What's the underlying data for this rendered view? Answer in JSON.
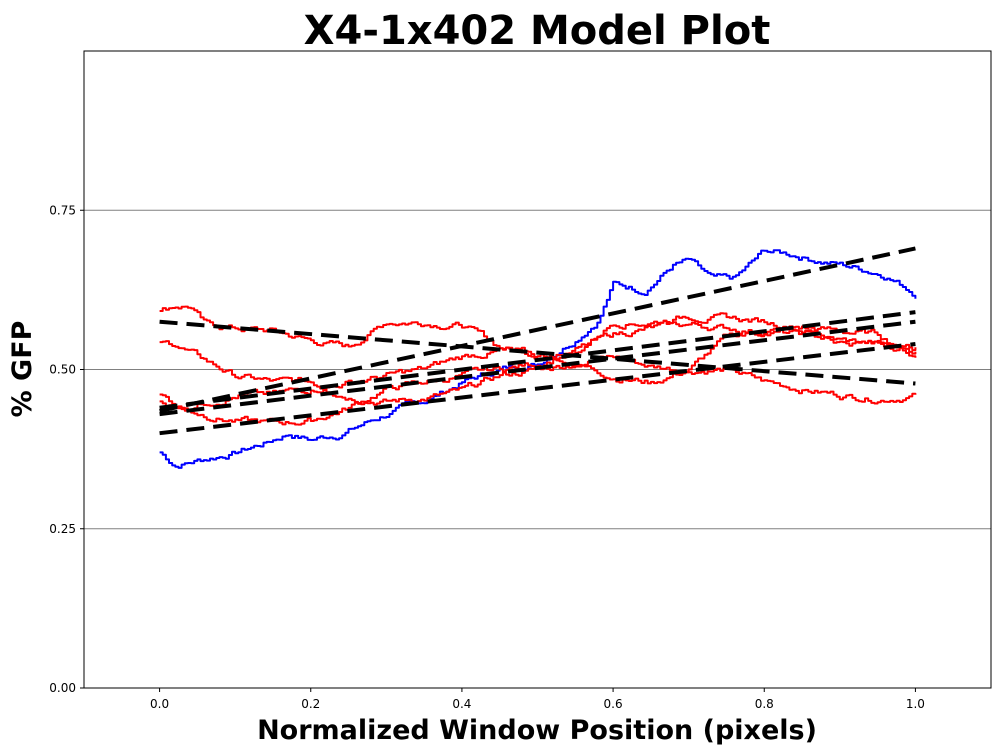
{
  "chart_data": {
    "type": "line",
    "title": "X4-1x402 Model Plot",
    "xlabel": "Normalized Window Position (pixels)",
    "ylabel": "% GFP",
    "xlim": [
      -0.1,
      1.1
    ],
    "ylim": [
      0,
      1.0
    ],
    "xticks": [
      "0.0",
      "0.2",
      "0.4",
      "0.6",
      "0.8",
      "1.0"
    ],
    "yticks": [
      "0.00",
      "0.25",
      "0.50",
      "0.75"
    ],
    "grid": "horizontal",
    "legend": "none",
    "colors": {
      "blue": "#0000ff",
      "red": "#ff0000",
      "fit": "#000000",
      "grid": "#808080"
    },
    "series": [
      {
        "color": "#0000ff",
        "x": [
          0.0,
          0.02,
          0.04,
          0.06,
          0.1,
          0.14,
          0.17,
          0.2,
          0.24,
          0.3,
          0.35,
          0.4,
          0.45,
          0.5,
          0.55,
          0.58,
          0.6,
          0.64,
          0.68,
          0.7,
          0.73,
          0.76,
          0.8,
          0.84,
          0.88,
          0.92,
          0.96,
          1.0
        ],
        "y": [
          0.37,
          0.35,
          0.355,
          0.36,
          0.37,
          0.385,
          0.4,
          0.39,
          0.4,
          0.43,
          0.45,
          0.48,
          0.5,
          0.51,
          0.55,
          0.58,
          0.635,
          0.625,
          0.665,
          0.67,
          0.64,
          0.64,
          0.685,
          0.68,
          0.67,
          0.66,
          0.65,
          0.62
        ]
      },
      {
        "color": "#ff0000",
        "x": [
          0.0,
          0.02,
          0.04,
          0.06,
          0.1,
          0.15,
          0.2,
          0.25,
          0.3,
          0.35,
          0.4,
          0.45,
          0.5,
          0.55,
          0.6,
          0.65,
          0.7,
          0.75,
          0.8,
          0.85,
          0.9,
          0.95,
          1.0
        ],
        "y": [
          0.59,
          0.6,
          0.6,
          0.57,
          0.565,
          0.56,
          0.545,
          0.535,
          0.575,
          0.575,
          0.57,
          0.535,
          0.525,
          0.515,
          0.52,
          0.505,
          0.5,
          0.5,
          0.48,
          0.47,
          0.46,
          0.455,
          0.46
        ]
      },
      {
        "color": "#ff0000",
        "x": [
          0.0,
          0.02,
          0.05,
          0.1,
          0.15,
          0.2,
          0.25,
          0.3,
          0.35,
          0.4,
          0.45,
          0.5,
          0.55,
          0.6,
          0.65,
          0.7,
          0.75,
          0.8,
          0.85,
          0.9,
          0.95,
          1.0
        ],
        "y": [
          0.54,
          0.54,
          0.52,
          0.49,
          0.48,
          0.48,
          0.46,
          0.45,
          0.455,
          0.465,
          0.49,
          0.5,
          0.51,
          0.49,
          0.48,
          0.5,
          0.55,
          0.56,
          0.565,
          0.56,
          0.555,
          0.52
        ]
      },
      {
        "color": "#ff0000",
        "x": [
          0.0,
          0.03,
          0.06,
          0.1,
          0.15,
          0.2,
          0.25,
          0.3,
          0.35,
          0.4,
          0.45,
          0.5,
          0.55,
          0.6,
          0.65,
          0.7,
          0.75,
          0.8,
          0.85,
          0.9,
          0.95,
          1.0
        ],
        "y": [
          0.45,
          0.44,
          0.43,
          0.42,
          0.415,
          0.42,
          0.44,
          0.47,
          0.48,
          0.49,
          0.5,
          0.51,
          0.53,
          0.555,
          0.565,
          0.57,
          0.565,
          0.56,
          0.555,
          0.545,
          0.54,
          0.53
        ]
      },
      {
        "color": "#ff0000",
        "x": [
          0.0,
          0.03,
          0.06,
          0.1,
          0.15,
          0.2,
          0.25,
          0.3,
          0.35,
          0.4,
          0.45,
          0.5,
          0.55,
          0.6,
          0.65,
          0.7,
          0.75,
          0.8,
          0.85,
          0.9,
          0.95,
          1.0
        ],
        "y": [
          0.46,
          0.44,
          0.45,
          0.46,
          0.46,
          0.47,
          0.48,
          0.49,
          0.5,
          0.52,
          0.53,
          0.52,
          0.525,
          0.575,
          0.575,
          0.585,
          0.58,
          0.575,
          0.565,
          0.545,
          0.54,
          0.535
        ]
      }
    ],
    "fit_lines": [
      {
        "x": [
          0.0,
          1.0
        ],
        "y": [
          0.435,
          0.69
        ]
      },
      {
        "x": [
          0.0,
          1.0
        ],
        "y": [
          0.575,
          0.478
        ]
      },
      {
        "x": [
          0.0,
          1.0
        ],
        "y": [
          0.44,
          0.59
        ]
      },
      {
        "x": [
          0.0,
          1.0
        ],
        "y": [
          0.43,
          0.575
        ]
      },
      {
        "x": [
          0.0,
          1.0
        ],
        "y": [
          0.4,
          0.54
        ]
      }
    ]
  }
}
